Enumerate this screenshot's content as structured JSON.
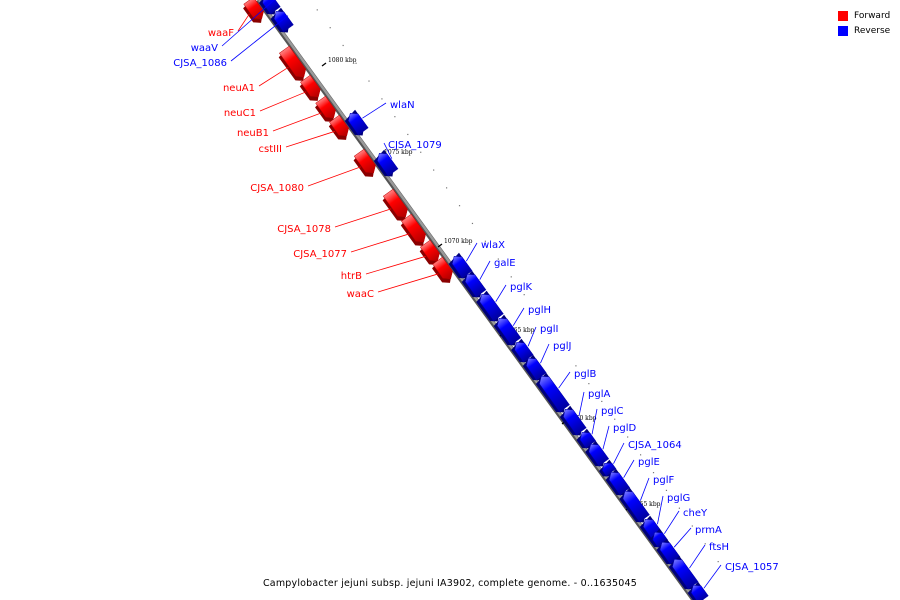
{
  "legend": {
    "forward_label": "Forward",
    "reverse_label": "Reverse",
    "forward_color": "#ff0000",
    "reverse_color": "#0000ff"
  },
  "caption": "Campylobacter jejuni subsp. jejuni IA3902, complete genome. - 0..1635045",
  "backbone_color": "#999999",
  "ticks": [
    "1080 kbp",
    "1075 kbp",
    "1070 kbp",
    "1065 kbp",
    "1060 kbp",
    "1055 kbp"
  ],
  "features": {
    "forward": [
      "waaF",
      "neuA1",
      "neuC1",
      "neuB1",
      "cstIII",
      "CJSA_1080",
      "CJSA_1078",
      "CJSA_1077",
      "htrB",
      "waaC"
    ],
    "reverse": [
      "waaV",
      "CJSA_1086",
      "wlaN",
      "CJSA_1079",
      "wlaX",
      "galE",
      "pglK",
      "pglH",
      "pglI",
      "pglJ",
      "pglB",
      "pglA",
      "pglC",
      "pglD",
      "CJSA_1064",
      "pglE",
      "pglF",
      "pglG",
      "cheY",
      "prmA",
      "ftsH",
      "CJSA_1057"
    ]
  }
}
